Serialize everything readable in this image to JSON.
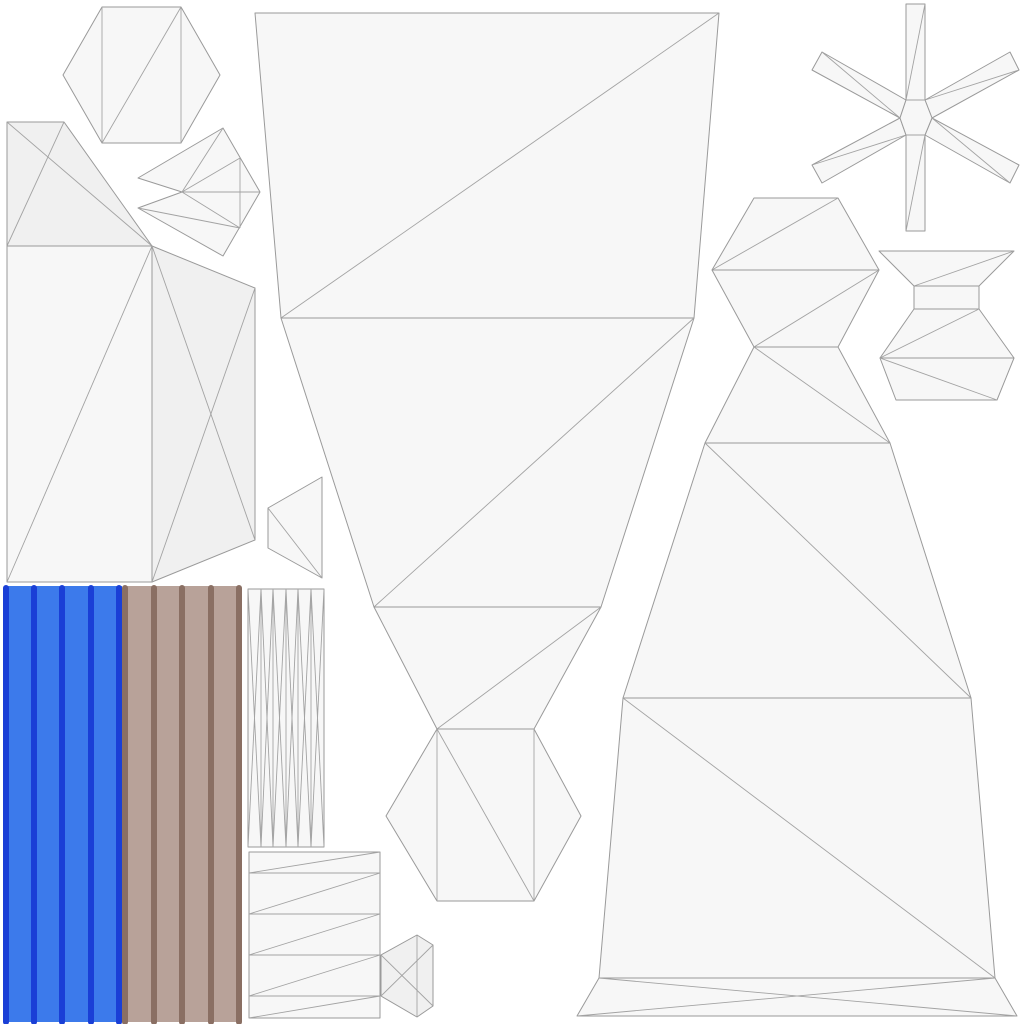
{
  "colors": {
    "background": "#ffffff",
    "face_fill": "#f7f7f7",
    "face_fill_alt": "#f0f0f0",
    "edge": "#9a9a9a",
    "blue_fill": "#3c7aeb",
    "blue_stripe": "#1a3fd6",
    "brown_fill": "#b8a299",
    "brown_stripe": "#8a6f63"
  },
  "islands": {
    "count": 14,
    "textured": [
      "blue-stripes",
      "brown-stripes"
    ]
  }
}
